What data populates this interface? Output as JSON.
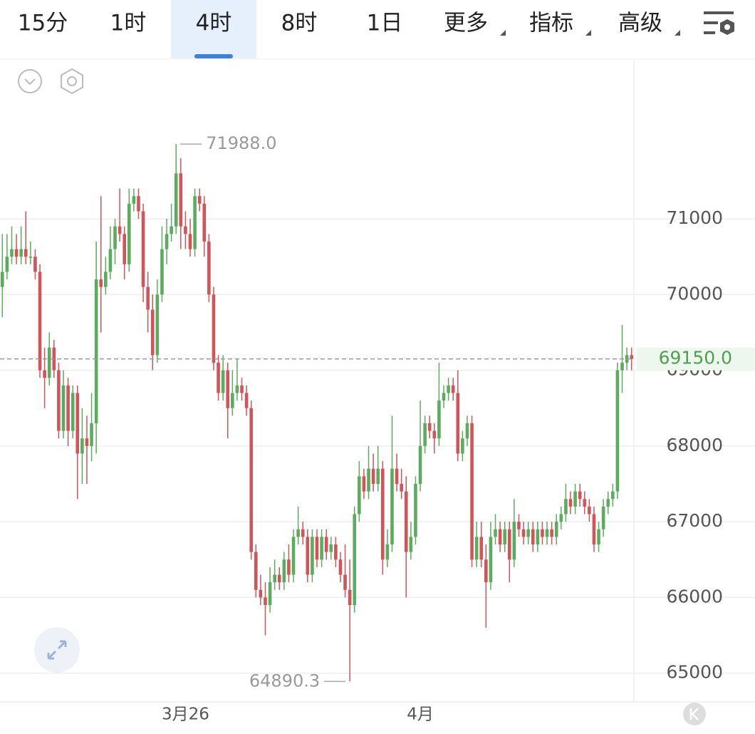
{
  "ui": {
    "tabs": [
      "15分",
      "1时",
      "4时",
      "8时",
      "1日",
      "更多",
      "指标",
      "高级"
    ],
    "active_tab": 2,
    "dropdown_tabs": [
      5,
      6,
      7
    ]
  },
  "chart_data": {
    "type": "candlestick",
    "open": [
      70100,
      70300,
      70500,
      70600,
      70500,
      70600,
      70500,
      70500,
      70300,
      69000,
      68900,
      69300,
      69000,
      68200,
      68800,
      68200,
      68700,
      67900,
      68100,
      68000,
      68300,
      70200,
      70100,
      70300,
      70600,
      70900,
      70800,
      70400,
      71200,
      71300,
      71100,
      70100,
      69800,
      69200,
      70000,
      70600,
      70800,
      70900,
      71600,
      70900,
      70800,
      70600,
      71300,
      71200,
      70700,
      70000,
      69100,
      68700,
      69000,
      68500,
      68700,
      68800,
      68700,
      68500,
      66600,
      66100,
      66000,
      65900,
      66200,
      66300,
      66200,
      66500,
      66300,
      66800,
      66900,
      66800,
      66300,
      66800,
      66500,
      66800,
      66600,
      66700,
      66500,
      66300,
      66100,
      65900,
      67100,
      67600,
      67400,
      67700,
      67500,
      67700,
      66500,
      66700,
      67700,
      67500,
      67400,
      66600,
      66800,
      67500,
      68000,
      68300,
      68200,
      68100,
      68600,
      68700,
      68800,
      68700,
      67900,
      68100,
      68300,
      66500,
      66800,
      66500,
      66200,
      66800,
      66900,
      66700,
      66900,
      66500,
      67000,
      66900,
      66800,
      66900,
      66700,
      66900,
      66800,
      66900,
      66800,
      67000,
      67100,
      67300,
      67200,
      67400,
      67300,
      67200,
      67100,
      66700,
      66900,
      67200,
      67300,
      67400,
      69000,
      69100,
      69200
    ],
    "high": [
      70800,
      70800,
      70900,
      70800,
      70900,
      71100,
      70700,
      70600,
      70400,
      69300,
      69500,
      69400,
      69100,
      69000,
      68900,
      68800,
      68800,
      68500,
      68400,
      68700,
      70700,
      71300,
      70500,
      70900,
      71000,
      71400,
      70900,
      71400,
      71400,
      71400,
      71200,
      70300,
      70000,
      70200,
      70900,
      71000,
      71200,
      71988,
      71800,
      71100,
      71000,
      71400,
      71400,
      71300,
      70800,
      70100,
      69200,
      69200,
      69100,
      69000,
      69150,
      68900,
      68800,
      68600,
      66700,
      66300,
      66200,
      66400,
      66500,
      66400,
      66600,
      66700,
      66900,
      67200,
      67000,
      66900,
      66900,
      66900,
      66900,
      66900,
      66800,
      66800,
      66600,
      66700,
      66500,
      67200,
      67800,
      67700,
      68000,
      67900,
      68000,
      67800,
      66900,
      68400,
      67900,
      67700,
      67600,
      67000,
      67600,
      68600,
      68400,
      68400,
      68300,
      69100,
      68800,
      68900,
      68900,
      69000,
      68200,
      68400,
      68400,
      67000,
      67000,
      66700,
      67000,
      67100,
      67000,
      67000,
      67000,
      67300,
      67100,
      67000,
      67000,
      67000,
      67000,
      67000,
      67000,
      67000,
      67100,
      67200,
      67500,
      67400,
      67500,
      67500,
      67400,
      67300,
      67200,
      67000,
      67300,
      67400,
      67500,
      69100,
      69600,
      69300,
      69300
    ],
    "low": [
      69700,
      70200,
      70400,
      70400,
      70400,
      70400,
      70400,
      70200,
      68900,
      68500,
      68800,
      68900,
      68100,
      68100,
      68000,
      68100,
      67300,
      67500,
      67500,
      67800,
      67900,
      69500,
      70000,
      70200,
      70400,
      70700,
      70200,
      70300,
      71100,
      71000,
      69900,
      69500,
      69000,
      69100,
      69900,
      70400,
      70700,
      70800,
      70600,
      70600,
      70500,
      70500,
      71100,
      70500,
      69900,
      69000,
      68600,
      68600,
      68100,
      68400,
      68600,
      68600,
      68400,
      66500,
      66000,
      65900,
      65500,
      65800,
      66100,
      66100,
      66100,
      66200,
      66200,
      66700,
      66700,
      66200,
      66200,
      66400,
      66400,
      66500,
      66500,
      66400,
      66200,
      66000,
      64890.3,
      65800,
      67000,
      67300,
      67300,
      67400,
      67400,
      66300,
      66400,
      66600,
      67400,
      67300,
      66000,
      66500,
      66700,
      67400,
      67900,
      68100,
      67900,
      68000,
      68500,
      68600,
      68600,
      67800,
      67800,
      68000,
      66400,
      66400,
      66400,
      65600,
      66100,
      66700,
      66600,
      66600,
      66200,
      66400,
      66800,
      66700,
      66700,
      66600,
      66600,
      66700,
      66700,
      66700,
      66700,
      66900,
      67000,
      67100,
      67100,
      67200,
      67100,
      67000,
      66600,
      66600,
      66800,
      67100,
      67200,
      67300,
      68700,
      69000,
      69000
    ],
    "close": [
      70300,
      70500,
      70600,
      70500,
      70600,
      70500,
      70500,
      70300,
      69000,
      68900,
      69300,
      69000,
      68200,
      68800,
      68200,
      68700,
      67900,
      68100,
      68000,
      68300,
      70200,
      70100,
      70300,
      70600,
      70900,
      70800,
      70400,
      71200,
      71300,
      71100,
      70100,
      69800,
      69200,
      70000,
      70600,
      70800,
      70900,
      71600,
      70900,
      70800,
      70600,
      71300,
      71200,
      70700,
      70000,
      69100,
      68700,
      69000,
      68500,
      68700,
      68800,
      68700,
      68500,
      66600,
      66100,
      66000,
      65900,
      66200,
      66300,
      66200,
      66500,
      66300,
      66800,
      66900,
      66800,
      66300,
      66800,
      66500,
      66800,
      66600,
      66700,
      66500,
      66300,
      66100,
      65900,
      67100,
      67600,
      67400,
      67700,
      67500,
      67700,
      66500,
      66700,
      67700,
      67500,
      67400,
      66600,
      66800,
      67500,
      68000,
      68300,
      68200,
      68100,
      68600,
      68700,
      68800,
      68700,
      67900,
      68100,
      68300,
      66500,
      66800,
      66500,
      66200,
      66800,
      66900,
      66700,
      66900,
      66500,
      67000,
      66900,
      66800,
      66900,
      66700,
      66900,
      66800,
      66900,
      66800,
      67000,
      67100,
      67300,
      67200,
      67400,
      67300,
      67200,
      67100,
      66700,
      66900,
      67200,
      67300,
      67400,
      69000,
      69100,
      69200,
      69150
    ],
    "up_color": "#5cac5f",
    "down_color": "#d2545b",
    "xlim": [
      -0.5,
      134.5
    ],
    "xticks": [
      {
        "value": 39,
        "label": "3月26"
      },
      {
        "value": 89,
        "label": "4月"
      }
    ],
    "ylim": [
      64620,
      73090
    ],
    "yticks": [
      65000,
      66000,
      67000,
      68000,
      69000,
      70000,
      71000
    ],
    "grid": true,
    "max_label": "71988.0",
    "max_index": 37,
    "min_label": "64890.3",
    "min_index": 74,
    "last_label": "69150.0"
  }
}
